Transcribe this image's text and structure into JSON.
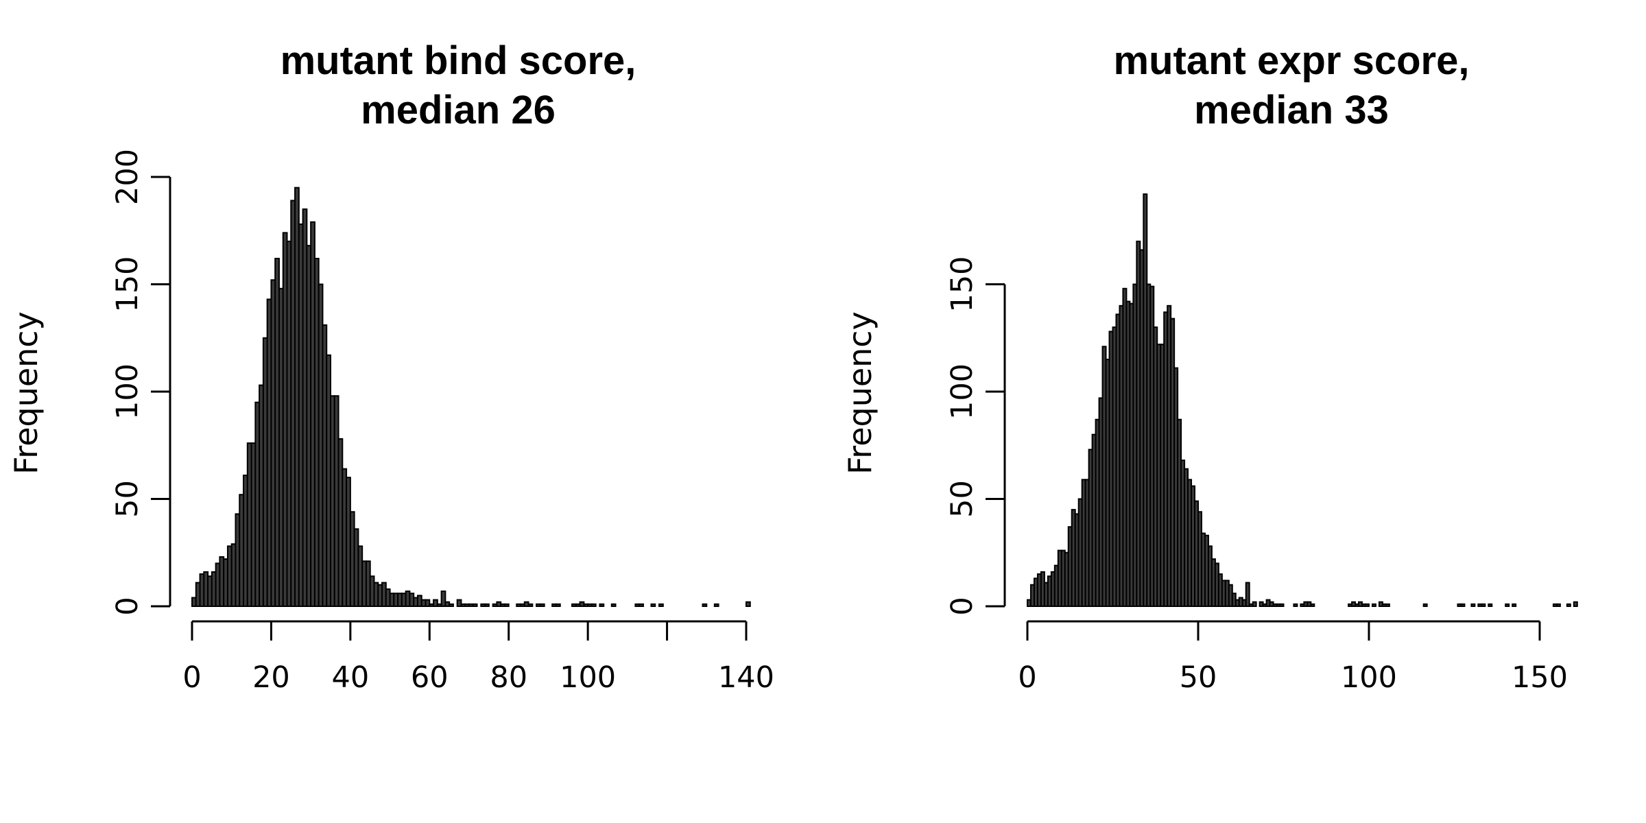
{
  "chart_data": [
    {
      "type": "bar",
      "subtype": "histogram",
      "title_line1": "mutant bind score,",
      "title_line2": "median 26",
      "xlabel": "",
      "ylabel": "Frequency",
      "xlim": [
        0,
        140
      ],
      "ylim": [
        0,
        200
      ],
      "xticks": [
        0,
        20,
        40,
        60,
        80,
        100,
        120,
        140
      ],
      "xtick_labels": [
        "0",
        "20",
        "40",
        "60",
        "80",
        "100",
        "",
        "140"
      ],
      "yticks": [
        0,
        50,
        100,
        150,
        200
      ],
      "ytick_labels": [
        "0",
        "50",
        "100",
        "150",
        "200"
      ],
      "bin_start": 0,
      "bin_width": 1,
      "counts": [
        4,
        11,
        15,
        16,
        14,
        16,
        20,
        23,
        22,
        28,
        29,
        43,
        52,
        61,
        76,
        76,
        95,
        103,
        125,
        143,
        152,
        162,
        148,
        174,
        170,
        189,
        195,
        178,
        185,
        168,
        179,
        162,
        150,
        131,
        117,
        98,
        98,
        78,
        64,
        60,
        44,
        36,
        28,
        21,
        21,
        14,
        11,
        10,
        11,
        8,
        6,
        6,
        6,
        6,
        7,
        6,
        4,
        5,
        3,
        3,
        1,
        3,
        1,
        7,
        2,
        1,
        0,
        3,
        1,
        1,
        1,
        1,
        0,
        1,
        1,
        0,
        1,
        2,
        1,
        1,
        0,
        0,
        1,
        1,
        2,
        1,
        0,
        1,
        1,
        0,
        0,
        1,
        1,
        0,
        0,
        0,
        1,
        1,
        2,
        1,
        1,
        1,
        0,
        1,
        0,
        0,
        1,
        0,
        0,
        0,
        0,
        0,
        1,
        1,
        0,
        0,
        1,
        0,
        1,
        0,
        0,
        0,
        0,
        0,
        0,
        0,
        0,
        0,
        0,
        1,
        0,
        0,
        1,
        0,
        0,
        0,
        0,
        0,
        0,
        0,
        2
      ]
    },
    {
      "type": "bar",
      "subtype": "histogram",
      "title_line1": "mutant expr score,",
      "title_line2": "median 33",
      "xlabel": "",
      "ylabel": "Frequency",
      "xlim": [
        0,
        150
      ],
      "ylim": [
        0,
        200
      ],
      "xticks": [
        0,
        50,
        100,
        150
      ],
      "xtick_labels": [
        "0",
        "50",
        "100",
        "150"
      ],
      "yticks": [
        0,
        50,
        100,
        150
      ],
      "ytick_labels": [
        "0",
        "50",
        "100",
        "150"
      ],
      "bin_start": 0,
      "bin_width": 1,
      "counts": [
        3,
        10,
        13,
        15,
        16,
        11,
        14,
        16,
        19,
        26,
        26,
        25,
        37,
        45,
        43,
        50,
        59,
        59,
        73,
        80,
        87,
        97,
        121,
        115,
        128,
        130,
        136,
        140,
        148,
        142,
        141,
        150,
        170,
        166,
        192,
        150,
        149,
        130,
        122,
        122,
        137,
        140,
        134,
        111,
        87,
        68,
        64,
        59,
        56,
        49,
        44,
        34,
        33,
        28,
        22,
        20,
        15,
        12,
        12,
        10,
        6,
        3,
        4,
        3,
        11,
        1,
        2,
        0,
        2,
        1,
        3,
        2,
        1,
        1,
        1,
        0,
        0,
        0,
        1,
        0,
        1,
        2,
        2,
        1,
        0,
        0,
        0,
        0,
        0,
        0,
        0,
        0,
        0,
        0,
        1,
        2,
        1,
        2,
        1,
        1,
        0,
        1,
        0,
        2,
        1,
        1,
        0,
        0,
        0,
        0,
        0,
        0,
        0,
        0,
        0,
        0,
        1,
        0,
        0,
        0,
        0,
        0,
        0,
        0,
        0,
        0,
        1,
        1,
        0,
        0,
        1,
        0,
        1,
        1,
        0,
        1,
        0,
        0,
        0,
        0,
        1,
        0,
        1,
        0,
        0,
        0,
        0,
        0,
        0,
        0,
        0,
        0,
        0,
        0,
        1,
        1,
        0,
        0,
        1,
        0,
        2
      ]
    }
  ]
}
